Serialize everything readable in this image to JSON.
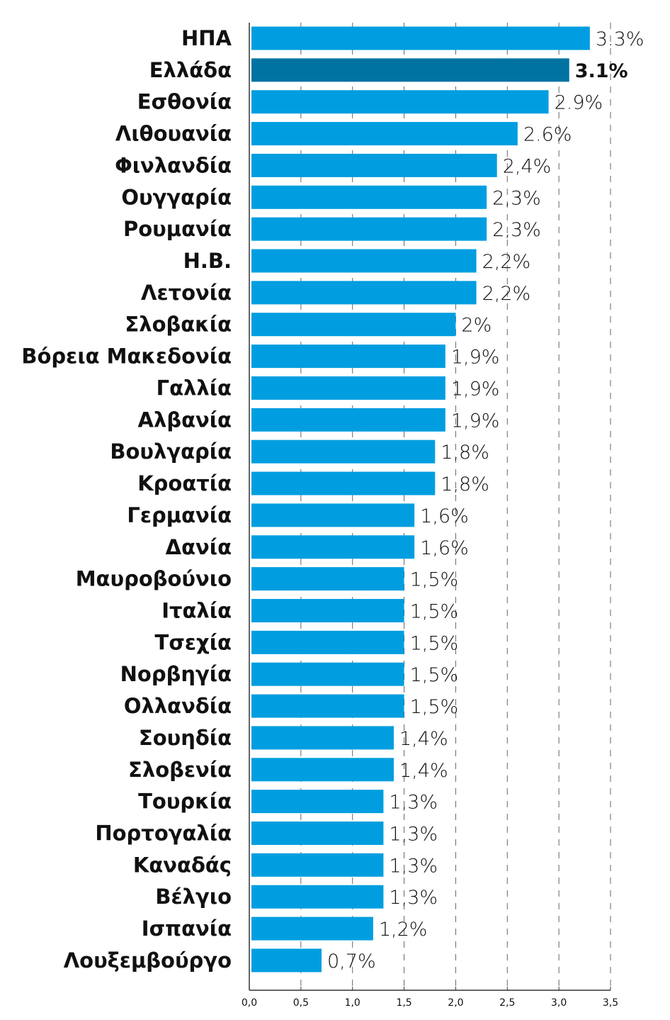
{
  "chart_data": {
    "type": "bar",
    "orientation": "horizontal",
    "title": "",
    "xlabel": "",
    "ylabel": "",
    "xlim": [
      0,
      3.5
    ],
    "grid": "vertical dashed",
    "x_ticks": [
      "0,0",
      "0,5",
      "1,0",
      "1,5",
      "2,0",
      "2,5",
      "3,0",
      "3,5"
    ],
    "x_tick_values": [
      0,
      0.5,
      1,
      1.5,
      2,
      2.5,
      3,
      3.5
    ],
    "categories": [
      "ΗΠΑ",
      "Ελλάδα",
      "Εσθονία",
      "Λιθουανία",
      "Φινλανδία",
      "Ουγγαρία",
      "Ρουμανία",
      "Η.Β.",
      "Λετονία",
      "Σλοβακία",
      "Βόρεια Μακεδονία",
      "Γαλλία",
      "Αλβανία",
      "Βουλγαρία",
      "Κροατία",
      "Γερμανία",
      "Δανία",
      "Μαυροβούνιο",
      "Ιταλία",
      "Τσεχία",
      "Νορβηγία",
      "Ολλανδία",
      "Σουηδία",
      "Σλοβενία",
      "Τουρκία",
      "Πορτογαλία",
      "Καναδάς",
      "Βέλγιο",
      "Ισπανία",
      "Λουξεμβούργο"
    ],
    "values": [
      3.3,
      3.1,
      2.9,
      2.6,
      2.4,
      2.3,
      2.3,
      2.2,
      2.2,
      2.0,
      1.9,
      1.9,
      1.9,
      1.8,
      1.8,
      1.6,
      1.6,
      1.5,
      1.5,
      1.5,
      1.5,
      1.5,
      1.4,
      1.4,
      1.3,
      1.3,
      1.3,
      1.3,
      1.2,
      0.7
    ],
    "data_labels": [
      "3.3%",
      "3.1%",
      "2.9%",
      "2.6%",
      "2,4%",
      "2,3%",
      "2,3%",
      "2,2%",
      "2,2%",
      "2%",
      "1,9%",
      "1,9%",
      "1,9%",
      "1,8%",
      "1,8%",
      "1,6%",
      "1,6%",
      "1,5%",
      "1,5%",
      "1,5%",
      "1,5%",
      "1,5%",
      "1,4%",
      "1,4%",
      "1,3%",
      "1,3%",
      "1,3%",
      "1,3%",
      "1,2%",
      "0,7%"
    ],
    "highlight": "Ελλάδα",
    "colors": {
      "bar": "#009ee0",
      "highlight": "#0073a3",
      "grid": "#666666",
      "axis": "#333333"
    }
  }
}
